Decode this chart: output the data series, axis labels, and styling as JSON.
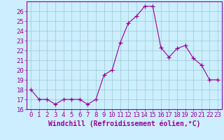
{
  "x": [
    0,
    1,
    2,
    3,
    4,
    5,
    6,
    7,
    8,
    9,
    10,
    11,
    12,
    13,
    14,
    15,
    16,
    17,
    18,
    19,
    20,
    21,
    22,
    23
  ],
  "y": [
    18,
    17,
    17,
    16.5,
    17,
    17,
    17,
    16.5,
    17,
    19.5,
    20,
    22.8,
    24.8,
    25.5,
    26.5,
    26.5,
    22.3,
    21.3,
    22.2,
    22.5,
    21.2,
    20.5,
    19,
    19
  ],
  "line_color": "#990099",
  "marker": "+",
  "marker_size": 4,
  "bg_color": "#cceeff",
  "grid_color": "#99cccc",
  "xlabel": "Windchill (Refroidissement éolien,°C)",
  "xlabel_fontsize": 7,
  "tick_fontsize": 6.5,
  "ylim": [
    16,
    27
  ],
  "xlim": [
    -0.5,
    23.5
  ],
  "yticks": [
    16,
    17,
    18,
    19,
    20,
    21,
    22,
    23,
    24,
    25,
    26
  ],
  "xticks": [
    0,
    1,
    2,
    3,
    4,
    5,
    6,
    7,
    8,
    9,
    10,
    11,
    12,
    13,
    14,
    15,
    16,
    17,
    18,
    19,
    20,
    21,
    22,
    23
  ],
  "tick_color": "#990099",
  "spine_color": "#990099",
  "label_color": "#990099"
}
